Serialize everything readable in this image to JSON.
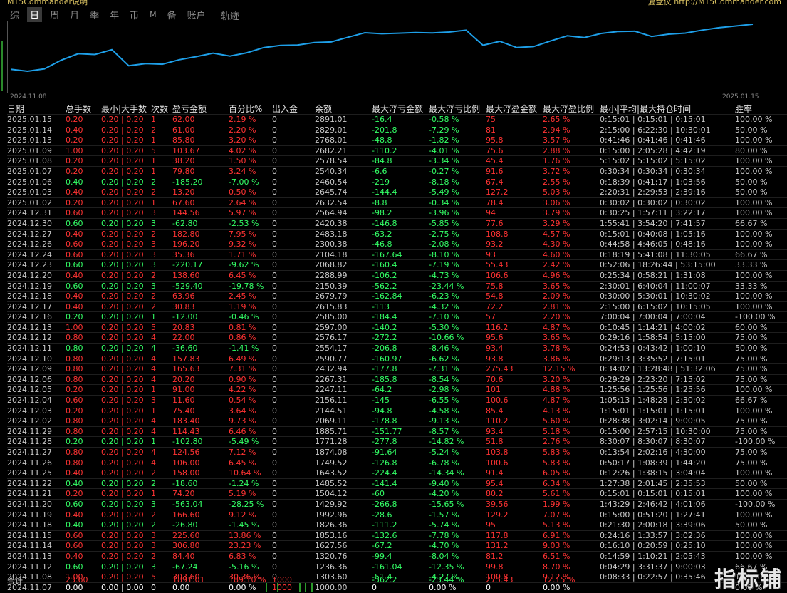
{
  "header": {
    "left_text": "MT5Commander说明",
    "right_text": "复盘仪 http://MT5Commander.com"
  },
  "tabs": [
    {
      "label": "综"
    },
    {
      "label": "日",
      "active": true
    },
    {
      "label": "周"
    },
    {
      "label": "月"
    },
    {
      "label": "季"
    },
    {
      "label": "年"
    },
    {
      "label": "币"
    },
    {
      "label": "M"
    },
    {
      "label": "备"
    },
    {
      "label": "账户"
    }
  ],
  "trail_label": "轨迹",
  "chart_data": {
    "type": "line",
    "x_start_label": "2024.11.08",
    "x_end_label": "2025.01.15",
    "values": [
      1303.6,
      1236.36,
      1320.76,
      1627.56,
      1853.16,
      1826.36,
      1992.96,
      1429.92,
      1504.12,
      1485.52,
      1643.52,
      1749.52,
      1874.08,
      1771.28,
      1885.71,
      2069.11,
      2144.51,
      2156.11,
      2247.11,
      2267.31,
      2432.94,
      2590.77,
      2554.17,
      2576.17,
      2597.0,
      2585.0,
      2615.83,
      2679.79,
      2150.39,
      2288.99,
      2068.82,
      2104.18,
      2300.38,
      2483.18,
      2420.38,
      2564.94,
      2632.54,
      2645.74,
      2460.54,
      2540.34,
      2578.54,
      2682.21,
      2768.01,
      2829.01,
      2891.01
    ]
  },
  "columns": [
    "日期",
    "总手数",
    "最小|大手数",
    "次数",
    "盈亏金额",
    "百分比%",
    "出入金",
    "余额",
    "最大浮亏金额",
    "最大浮亏比例",
    "最大浮盈金额",
    "最大浮盈比例",
    "最小|平均|最大持仓时间",
    "胜率"
  ],
  "rows": [
    [
      "2025.01.15",
      "0.20",
      "0.20 | 0.20",
      "1",
      "62.00",
      "2.19 %",
      "0",
      "2891.01",
      "-16.4",
      "-0.58 %",
      "75",
      "2.65 %",
      "0:15:01 | 0:15:01 | 0:15:01",
      "100.00 %"
    ],
    [
      "2025.01.14",
      "0.40",
      "0.20 | 0.20",
      "2",
      "61.00",
      "2.20 %",
      "0",
      "2829.01",
      "-201.8",
      "-7.29 %",
      "81",
      "2.94 %",
      "2:15:00 | 6:22:30 | 10:30:01",
      "50.00 %"
    ],
    [
      "2025.01.13",
      "0.20",
      "0.20 | 0.20",
      "1",
      "85.80",
      "3.20 %",
      "0",
      "2768.01",
      "-48.8",
      "-1.82 %",
      "95.8",
      "3.57 %",
      "0:41:46 | 0:41:46 | 0:41:46",
      "100.00 %"
    ],
    [
      "2025.01.09",
      "1.00",
      "0.20 | 0.20",
      "5",
      "103.67",
      "4.02 %",
      "0",
      "2682.21",
      "-110.2",
      "-4.01 %",
      "75.6",
      "2.88 %",
      "0:15:00 | 2:05:28 | 4:42:19",
      "80.00 %"
    ],
    [
      "2025.01.08",
      "0.20",
      "0.20 | 0.20",
      "1",
      "38.20",
      "1.50 %",
      "0",
      "2578.54",
      "-84.8",
      "-3.34 %",
      "45.4",
      "1.76 %",
      "5:15:02 | 5:15:02 | 5:15:02",
      "100.00 %"
    ],
    [
      "2025.01.07",
      "0.20",
      "0.20 | 0.20",
      "1",
      "79.80",
      "3.24 %",
      "0",
      "2540.34",
      "-6.6",
      "-0.27 %",
      "91.6",
      "3.72 %",
      "0:30:34 | 0:30:34 | 0:30:34",
      "100.00 %"
    ],
    [
      "2025.01.06",
      "0.40",
      "0.20 | 0.20",
      "2",
      "-185.20",
      "-7.00 %",
      "0",
      "2460.54",
      "-219",
      "-8.18 %",
      "67.4",
      "2.55 %",
      "0:18:39 | 0:41:17 | 1:03:56",
      "50.00 %"
    ],
    [
      "2025.01.03",
      "0.40",
      "0.20 | 0.20",
      "2",
      "13.20",
      "0.50 %",
      "0",
      "2645.74",
      "-144.4",
      "-5.49 %",
      "127.2",
      "5.03 %",
      "2:20:31 | 2:29:53 | 2:39:16",
      "50.00 %"
    ],
    [
      "2025.01.02",
      "0.20",
      "0.20 | 0.20",
      "1",
      "67.60",
      "2.64 %",
      "0",
      "2632.54",
      "-8.8",
      "-0.34 %",
      "78.4",
      "3.06 %",
      "0:30:02 | 0:30:02 | 0:30:02",
      "100.00 %"
    ],
    [
      "2024.12.31",
      "0.60",
      "0.20 | 0.20",
      "3",
      "144.56",
      "5.97 %",
      "0",
      "2564.94",
      "-98.2",
      "-3.96 %",
      "94",
      "3.79 %",
      "0:30:25 | 1:57:11 | 3:22:17",
      "100.00 %"
    ],
    [
      "2024.12.30",
      "0.60",
      "0.20 | 0.20",
      "3",
      "-62.80",
      "-2.53 %",
      "0",
      "2420.38",
      "-146.8",
      "-5.85 %",
      "77.6",
      "3.29 %",
      "1:55:41 | 3:54:20 | 7:41:57",
      "66.67 %"
    ],
    [
      "2024.12.27",
      "0.40",
      "0.20 | 0.20",
      "2",
      "182.80",
      "7.95 %",
      "0",
      "2483.18",
      "-63.2",
      "-2.75 %",
      "108.8",
      "4.57 %",
      "0:15:01 | 0:40:08 | 1:05:16",
      "100.00 %"
    ],
    [
      "2024.12.26",
      "0.60",
      "0.20 | 0.20",
      "3",
      "196.20",
      "9.32 %",
      "0",
      "2300.38",
      "-46.8",
      "-2.08 %",
      "93.2",
      "4.30 %",
      "0:44:58 | 4:46:05 | 0:48:16",
      "100.00 %"
    ],
    [
      "2024.12.24",
      "0.60",
      "0.20 | 0.20",
      "3",
      "35.36",
      "1.71 %",
      "0",
      "2104.18",
      "-167.64",
      "-8.10 %",
      "93",
      "4.60 %",
      "0:18:19 | 5:41:08 | 11:30:05",
      "66.67 %"
    ],
    [
      "2024.12.23",
      "0.60",
      "0.20 | 0.20",
      "3",
      "-220.17",
      "-9.62 %",
      "0",
      "2068.82",
      "-160.4",
      "-7.19 %",
      "55.43",
      "2.42 %",
      "0:52:06 | 18:26:44 | 53:15:00",
      "33.33 %"
    ],
    [
      "2024.12.20",
      "0.40",
      "0.20 | 0.20",
      "2",
      "138.60",
      "6.45 %",
      "0",
      "2288.99",
      "-106.2",
      "-4.73 %",
      "106.6",
      "4.96 %",
      "0:25:34 | 0:58:21 | 1:31:08",
      "100.00 %"
    ],
    [
      "2024.12.19",
      "0.60",
      "0.20 | 0.20",
      "3",
      "-529.40",
      "-19.78 %",
      "0",
      "2150.39",
      "-562.2",
      "-23.44 %",
      "75.8",
      "3.65 %",
      "2:30:01 | 6:40:04 | 11:00:07",
      "33.33 %"
    ],
    [
      "2024.12.18",
      "0.40",
      "0.20 | 0.20",
      "2",
      "63.96",
      "2.45 %",
      "0",
      "2679.79",
      "-162.84",
      "-6.23 %",
      "54.8",
      "2.09 %",
      "0:30:00 | 5:30:01 | 10:30:02",
      "100.00 %"
    ],
    [
      "2024.12.17",
      "0.40",
      "0.20 | 0.20",
      "2",
      "30.83",
      "1.19 %",
      "0",
      "2615.83",
      "-113",
      "-4.32 %",
      "72.2",
      "2.81 %",
      "2:15:00 | 6:15:02 | 10:15:05",
      "100.00 %"
    ],
    [
      "2024.12.16",
      "0.20",
      "0.20 | 0.20",
      "1",
      "-12.00",
      "-0.46 %",
      "0",
      "2585.00",
      "-184.4",
      "-7.10 %",
      "57",
      "2.20 %",
      "7:00:04 | 7:00:04 | 7:00:04",
      "-100.00 %"
    ],
    [
      "2024.12.13",
      "1.00",
      "0.20 | 0.20",
      "5",
      "20.83",
      "0.81 %",
      "0",
      "2597.00",
      "-140.2",
      "-5.30 %",
      "116.2",
      "4.87 %",
      "0:10:45 | 1:14:21 | 4:00:02",
      "60.00 %"
    ],
    [
      "2024.12.12",
      "0.80",
      "0.20 | 0.20",
      "4",
      "22.00",
      "0.86 %",
      "0",
      "2576.17",
      "-272.2",
      "-10.66 %",
      "95.6",
      "3.65 %",
      "0:29:16 | 1:58:54 | 5:15:00",
      "75.00 %"
    ],
    [
      "2024.12.11",
      "0.80",
      "0.20 | 0.20",
      "4",
      "-36.60",
      "-1.41 %",
      "0",
      "2554.17",
      "-206.8",
      "-8.46 %",
      "93.4",
      "3.78 %",
      "0:24:53 | 0:43:42 | 1:00:10",
      "50.00 %"
    ],
    [
      "2024.12.10",
      "0.80",
      "0.20 | 0.20",
      "4",
      "157.83",
      "6.49 %",
      "0",
      "2590.77",
      "-160.97",
      "-6.62 %",
      "93.8",
      "3.86 %",
      "0:29:13 | 3:35:52 | 7:15:01",
      "75.00 %"
    ],
    [
      "2024.12.09",
      "0.80",
      "0.20 | 0.20",
      "4",
      "165.63",
      "7.31 %",
      "0",
      "2432.94",
      "-177.8",
      "-7.31 %",
      "275.43",
      "12.15 %",
      "0:34:02 | 13:28:48 | 51:32:06",
      "75.00 %"
    ],
    [
      "2024.12.06",
      "0.80",
      "0.20 | 0.20",
      "4",
      "20.20",
      "0.90 %",
      "0",
      "2267.31",
      "-185.8",
      "-8.54 %",
      "70.6",
      "3.20 %",
      "0:29:29 | 2:23:20 | 7:15:02",
      "75.00 %"
    ],
    [
      "2024.12.05",
      "0.20",
      "0.20 | 0.20",
      "1",
      "91.00",
      "4.22 %",
      "0",
      "2247.11",
      "-64.2",
      "-2.98 %",
      "101",
      "4.88 %",
      "1:25:56 | 1:25:56 | 1:25:56",
      "100.00 %"
    ],
    [
      "2024.12.04",
      "0.60",
      "0.20 | 0.20",
      "3",
      "11.60",
      "0.54 %",
      "0",
      "2156.11",
      "-145",
      "-6.55 %",
      "100.6",
      "4.87 %",
      "1:05:13 | 1:48:28 | 2:30:02",
      "66.67 %"
    ],
    [
      "2024.12.03",
      "0.20",
      "0.20 | 0.20",
      "1",
      "75.40",
      "3.64 %",
      "0",
      "2144.51",
      "-94.8",
      "-4.58 %",
      "85.4",
      "4.13 %",
      "1:15:01 | 1:15:01 | 1:15:01",
      "100.00 %"
    ],
    [
      "2024.12.02",
      "0.80",
      "0.20 | 0.20",
      "4",
      "183.40",
      "9.73 %",
      "0",
      "2069.11",
      "-178.8",
      "-9.13 %",
      "110.2",
      "5.60 %",
      "0:28:38 | 3:02:14 | 9:00:05",
      "75.00 %"
    ],
    [
      "2024.11.29",
      "0.80",
      "0.20 | 0.20",
      "4",
      "114.43",
      "6.46 %",
      "0",
      "1885.71",
      "-151.77",
      "-8.57 %",
      "93.4",
      "5.18 %",
      "0:15:00 | 2:57:15 | 10:30:00",
      "75.00 %"
    ],
    [
      "2024.11.28",
      "0.20",
      "0.20 | 0.20",
      "1",
      "-102.80",
      "-5.49 %",
      "0",
      "1771.28",
      "-277.8",
      "-14.82 %",
      "51.8",
      "2.76 %",
      "8:30:07 | 8:30:07 | 8:30:07",
      "-100.00 %"
    ],
    [
      "2024.11.27",
      "0.80",
      "0.20 | 0.20",
      "4",
      "124.56",
      "7.12 %",
      "0",
      "1874.08",
      "-91.64",
      "-5.24 %",
      "103.8",
      "5.83 %",
      "0:13:54 | 2:02:16 | 4:30:00",
      "75.00 %"
    ],
    [
      "2024.11.26",
      "0.80",
      "0.20 | 0.20",
      "4",
      "106.00",
      "6.45 %",
      "0",
      "1749.52",
      "-126.8",
      "-6.78 %",
      "100.6",
      "5.83 %",
      "0:50:17 | 1:08:39 | 1:44:20",
      "75.00 %"
    ],
    [
      "2024.11.25",
      "0.40",
      "0.20 | 0.20",
      "2",
      "158.00",
      "10.64 %",
      "0",
      "1643.52",
      "-224.4",
      "-14.34 %",
      "91.4",
      "6.05 %",
      "0:12:26 | 1:38:15 | 3:04:04",
      "100.00 %"
    ],
    [
      "2024.11.22",
      "0.40",
      "0.20 | 0.20",
      "2",
      "-18.60",
      "-1.24 %",
      "0",
      "1485.52",
      "-141.4",
      "-9.40 %",
      "95.4",
      "6.34 %",
      "1:27:38 | 2:01:45 | 2:35:53",
      "50.00 %"
    ],
    [
      "2024.11.21",
      "0.20",
      "0.20 | 0.20",
      "1",
      "74.20",
      "5.19 %",
      "0",
      "1504.12",
      "-60",
      "-4.20 %",
      "80.2",
      "5.61 %",
      "0:15:01 | 0:15:01 | 0:15:01",
      "100.00 %"
    ],
    [
      "2024.11.20",
      "0.60",
      "0.20 | 0.20",
      "3",
      "-563.04",
      "-28.25 %",
      "0",
      "1429.92",
      "-266.8",
      "-15.65 %",
      "39.56",
      "1.99 %",
      "1:43:29 | 2:46:42 | 4:01:06",
      "-100.00 %"
    ],
    [
      "2024.11.19",
      "0.40",
      "0.20 | 0.20",
      "2",
      "166.60",
      "9.12 %",
      "0",
      "1992.96",
      "-28.6",
      "-1.57 %",
      "129.2",
      "7.07 %",
      "0:15:00 | 0:51:20 | 1:27:41",
      "100.00 %"
    ],
    [
      "2024.11.18",
      "0.40",
      "0.20 | 0.20",
      "2",
      "-26.80",
      "-1.45 %",
      "0",
      "1826.36",
      "-111.2",
      "-5.74 %",
      "95",
      "5.13 %",
      "0:21:30 | 2:00:18 | 3:39:06",
      "50.00 %"
    ],
    [
      "2024.11.15",
      "0.60",
      "0.20 | 0.20",
      "3",
      "225.60",
      "13.86 %",
      "0",
      "1853.16",
      "-132.6",
      "-7.78 %",
      "117.8",
      "6.91 %",
      "0:24:16 | 1:33:57 | 3:02:36",
      "100.00 %"
    ],
    [
      "2024.11.14",
      "0.60",
      "0.20 | 0.20",
      "3",
      "306.80",
      "23.23 %",
      "0",
      "1627.56",
      "-67.2",
      "-4.70 %",
      "131.2",
      "9.03 %",
      "0:16:10 | 0:20:59 | 0:25:10",
      "100.00 %"
    ],
    [
      "2024.11.13",
      "0.40",
      "0.20 | 0.20",
      "2",
      "84.40",
      "6.83 %",
      "0",
      "1320.76",
      "-99.4",
      "-8.04 %",
      "81.2",
      "6.51 %",
      "0:14:59 | 1:10:21 | 2:05:43",
      "100.00 %"
    ],
    [
      "2024.11.12",
      "0.60",
      "0.20 | 0.20",
      "3",
      "-67.24",
      "-5.16 %",
      "0",
      "1236.36",
      "-161.04",
      "-12.35 %",
      "99.8",
      "8.70 %",
      "0:04:29 | 3:31:37 | 9:00:03",
      "66.67 %"
    ],
    [
      "2024.11.08",
      "1.00",
      "0.20 | 0.20",
      "5",
      "303.60",
      "30.36 %",
      "0",
      "1303.60",
      "-51.4",
      "-4.27 %",
      "109.8",
      "9.12 %",
      "0:08:33 | 0:22:57 | 0:35:46",
      "100.00 %"
    ],
    [
      "2024.11.07",
      "0.00",
      "0.00 | 0.00",
      "0",
      "0.00",
      "0.00 %",
      "1000",
      "1000.00",
      "0",
      "0.00 %",
      "0",
      "0.00 %",
      "",
      "0.00 %"
    ]
  ],
  "total": {
    "label": "合计",
    "lots": "23.60",
    "pnl": "1891.01",
    "pct": "189.10 %",
    "deposit": "1000",
    "max_float_loss": "-562.2",
    "max_float_loss_pct": "-23.44 %",
    "max_float_profit": "275.43",
    "max_float_profit_pct": "12.15 %"
  },
  "logo_text": "指标铺",
  "colors": {
    "profit": "#ff3333",
    "loss": "#33ff66",
    "line": "#1e9fe8"
  }
}
